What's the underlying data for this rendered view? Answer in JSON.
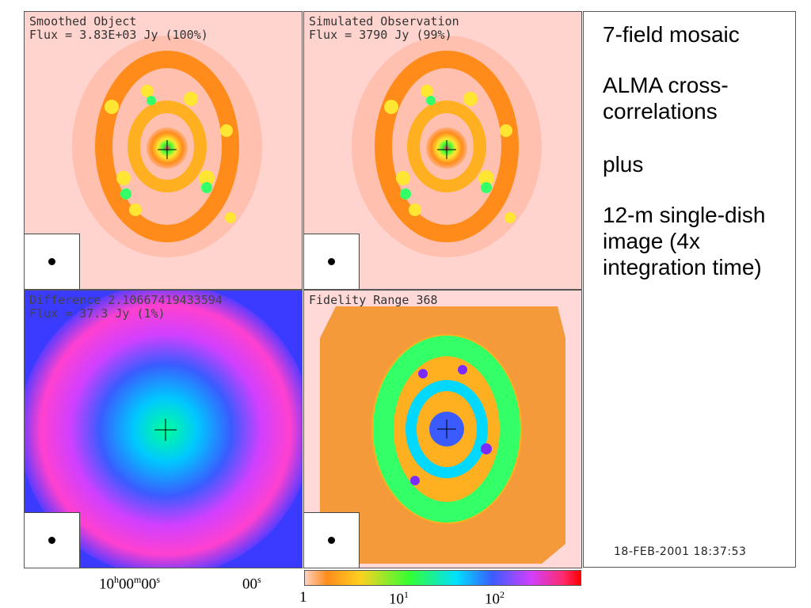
{
  "panels": {
    "smoothed": {
      "line1": "Smoothed Object",
      "line2": "Flux = 3.83E+03 Jy (100%)"
    },
    "simulated": {
      "line1": "Simulated Observation",
      "line2": "Flux = 3790 Jy (99%)"
    },
    "difference": {
      "line1": "Difference 2.10667419433594",
      "line2": "Flux = 37.3 Jy (1%)"
    },
    "fidelity": {
      "line1": "Fidelity Range 368"
    }
  },
  "sidebar": {
    "items": [
      "7-field mosaic",
      "ALMA cross-correlations",
      "plus",
      "12-m single-dish image (4x integration time)"
    ],
    "timestamp": "18-FEB-2001 18:37:53"
  },
  "axis": {
    "ra_main_base": "10",
    "ra_main_h": "h",
    "ra_main_mid": "00",
    "ra_main_m": "m",
    "ra_main_end": "00",
    "ra_main_s": "s",
    "ra_second_base": "00",
    "ra_second_s": "s"
  },
  "colorbar": {
    "label_1": "1",
    "label_10_base": "10",
    "label_10_exp": "1",
    "label_100_base": "10",
    "label_100_exp": "2"
  },
  "colors": {
    "background_pink": "#ffd3ce",
    "galaxy_orange": "#ff8c1a",
    "difference_blue": "#2e5bff",
    "fidelity_orange": "#f59a3a"
  }
}
